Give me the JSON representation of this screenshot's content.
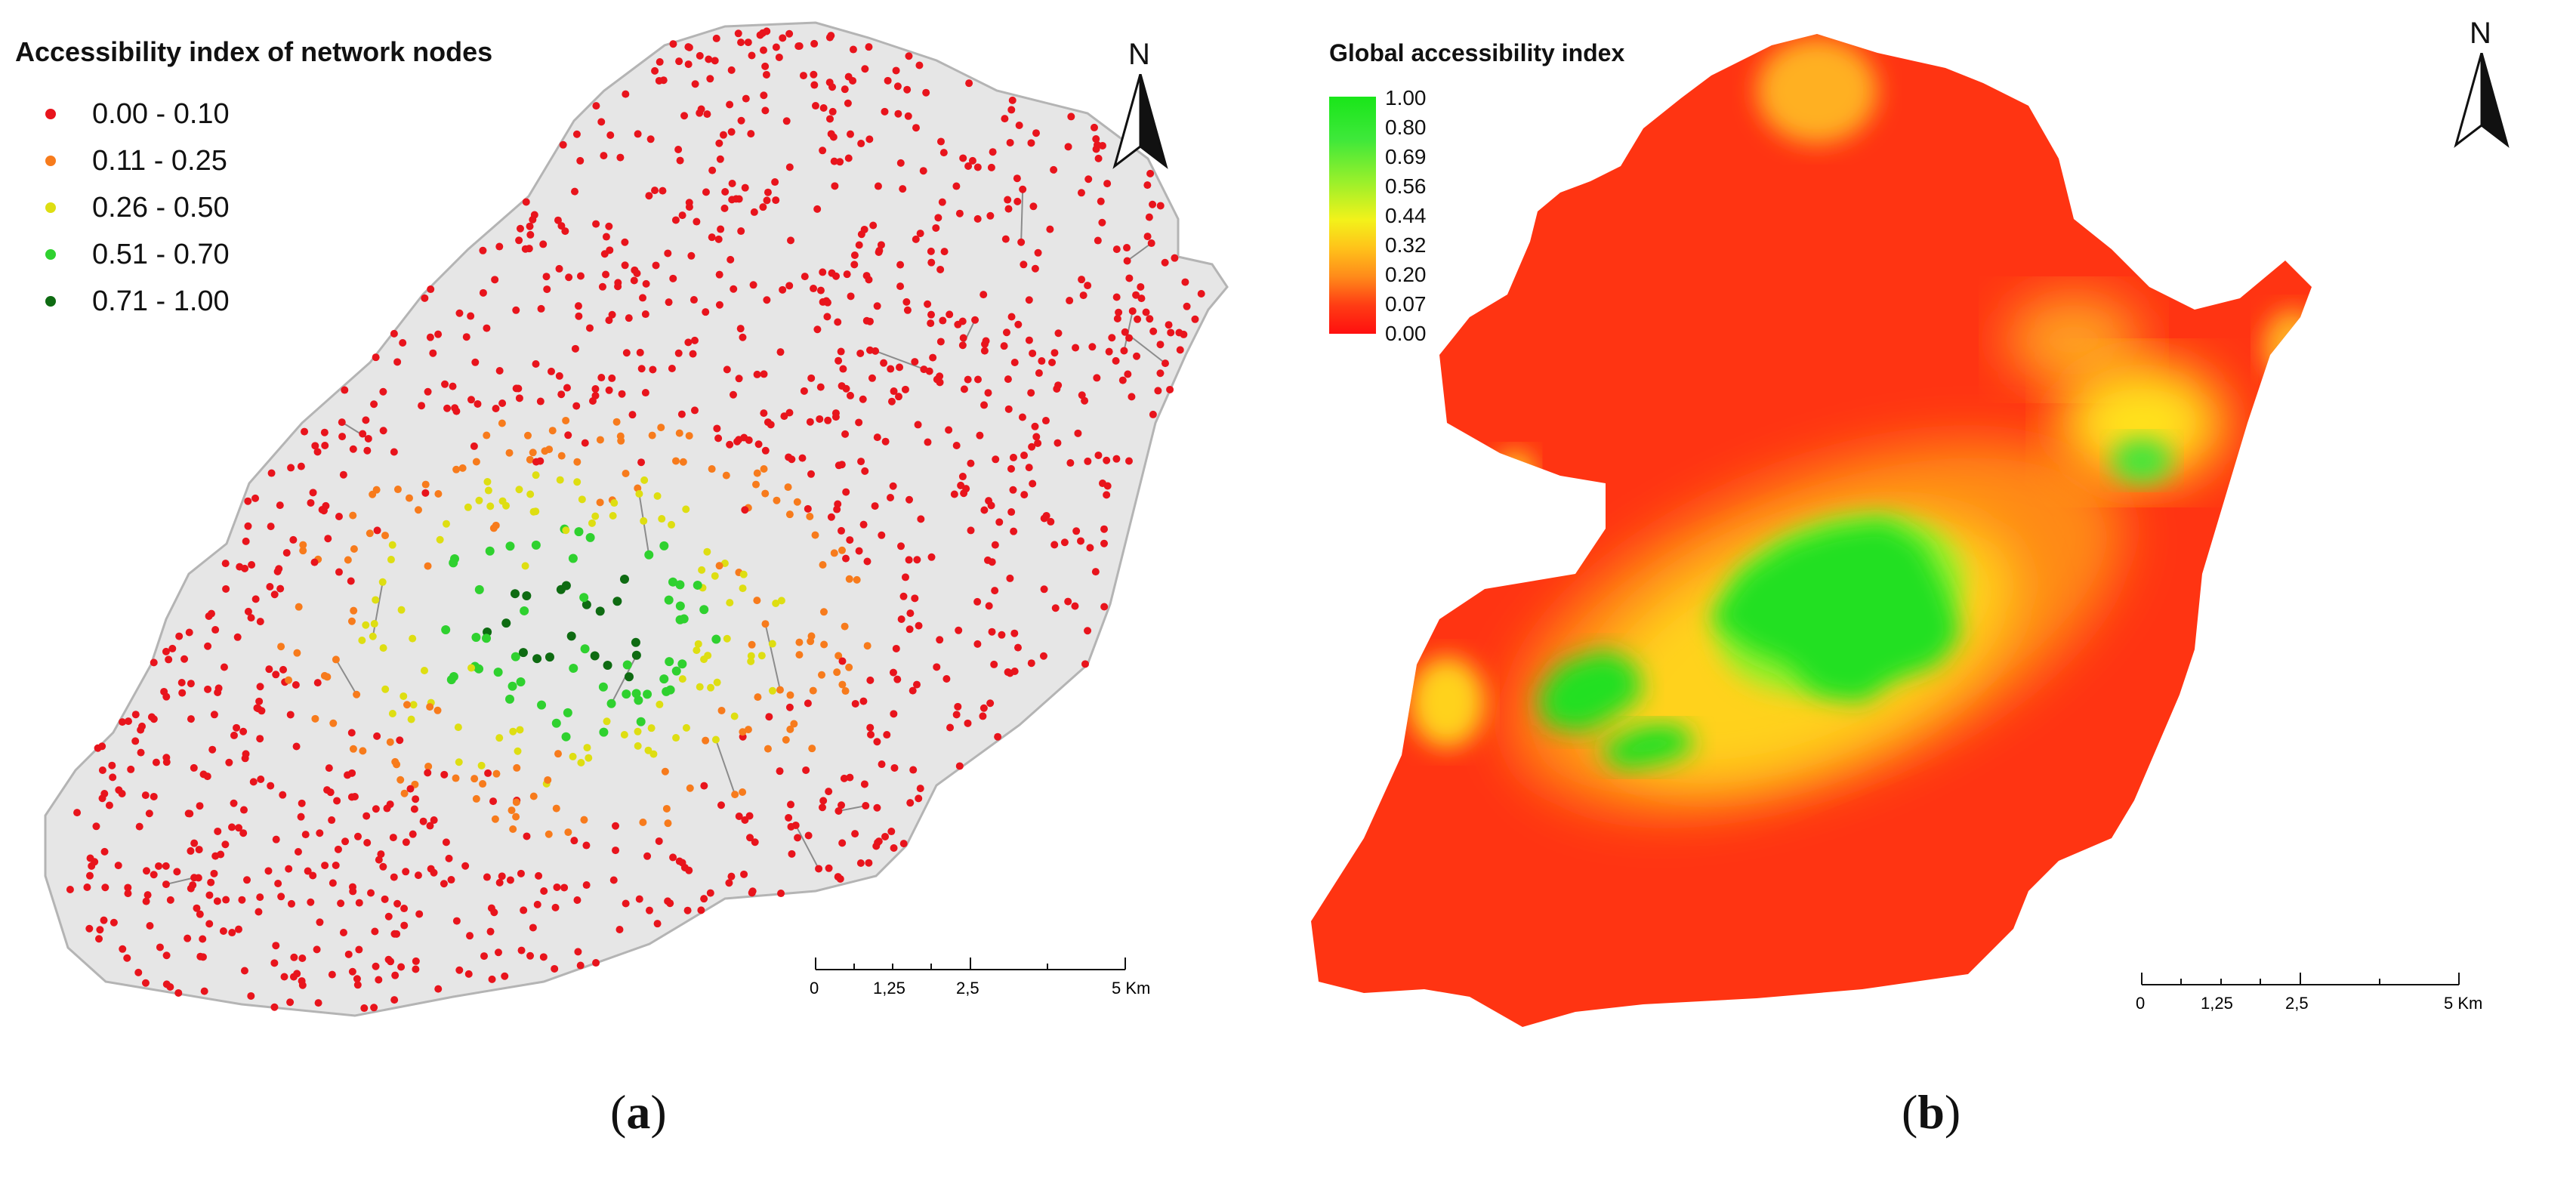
{
  "panels": {
    "a": {
      "legend_title": "Accessibility index of network nodes",
      "classes": [
        {
          "label": "0.00 - 0.10",
          "color": "#e8141c"
        },
        {
          "label": "0.11 - 0.25",
          "color": "#f77b1c"
        },
        {
          "label": "0.26 - 0.50",
          "color": "#dede12"
        },
        {
          "label": "0.51 - 0.70",
          "color": "#2fd12f"
        },
        {
          "label": "0.71 - 1.00",
          "color": "#0e6b12"
        }
      ],
      "north_label": "N",
      "scale": {
        "ticks": [
          "0",
          "1,25",
          "2,5",
          "5 Km"
        ]
      },
      "caption_open": "(",
      "caption_letter": "a",
      "caption_close": ")"
    },
    "b": {
      "legend_title": "Global accessibility index",
      "ramp_labels": [
        "1.00",
        "0.80",
        "0.69",
        "0.56",
        "0.44",
        "0.32",
        "0.20",
        "0.07",
        "0.00"
      ],
      "north_label": "N",
      "scale": {
        "ticks": [
          "0",
          "1,25",
          "2,5",
          "5 Km"
        ]
      },
      "caption_open": "(",
      "caption_letter": "b",
      "caption_close": ")"
    }
  },
  "colors": {
    "map_background": "#e6e6e6",
    "surface_low": "#ff3412",
    "surface_high": "#1ee61e"
  }
}
